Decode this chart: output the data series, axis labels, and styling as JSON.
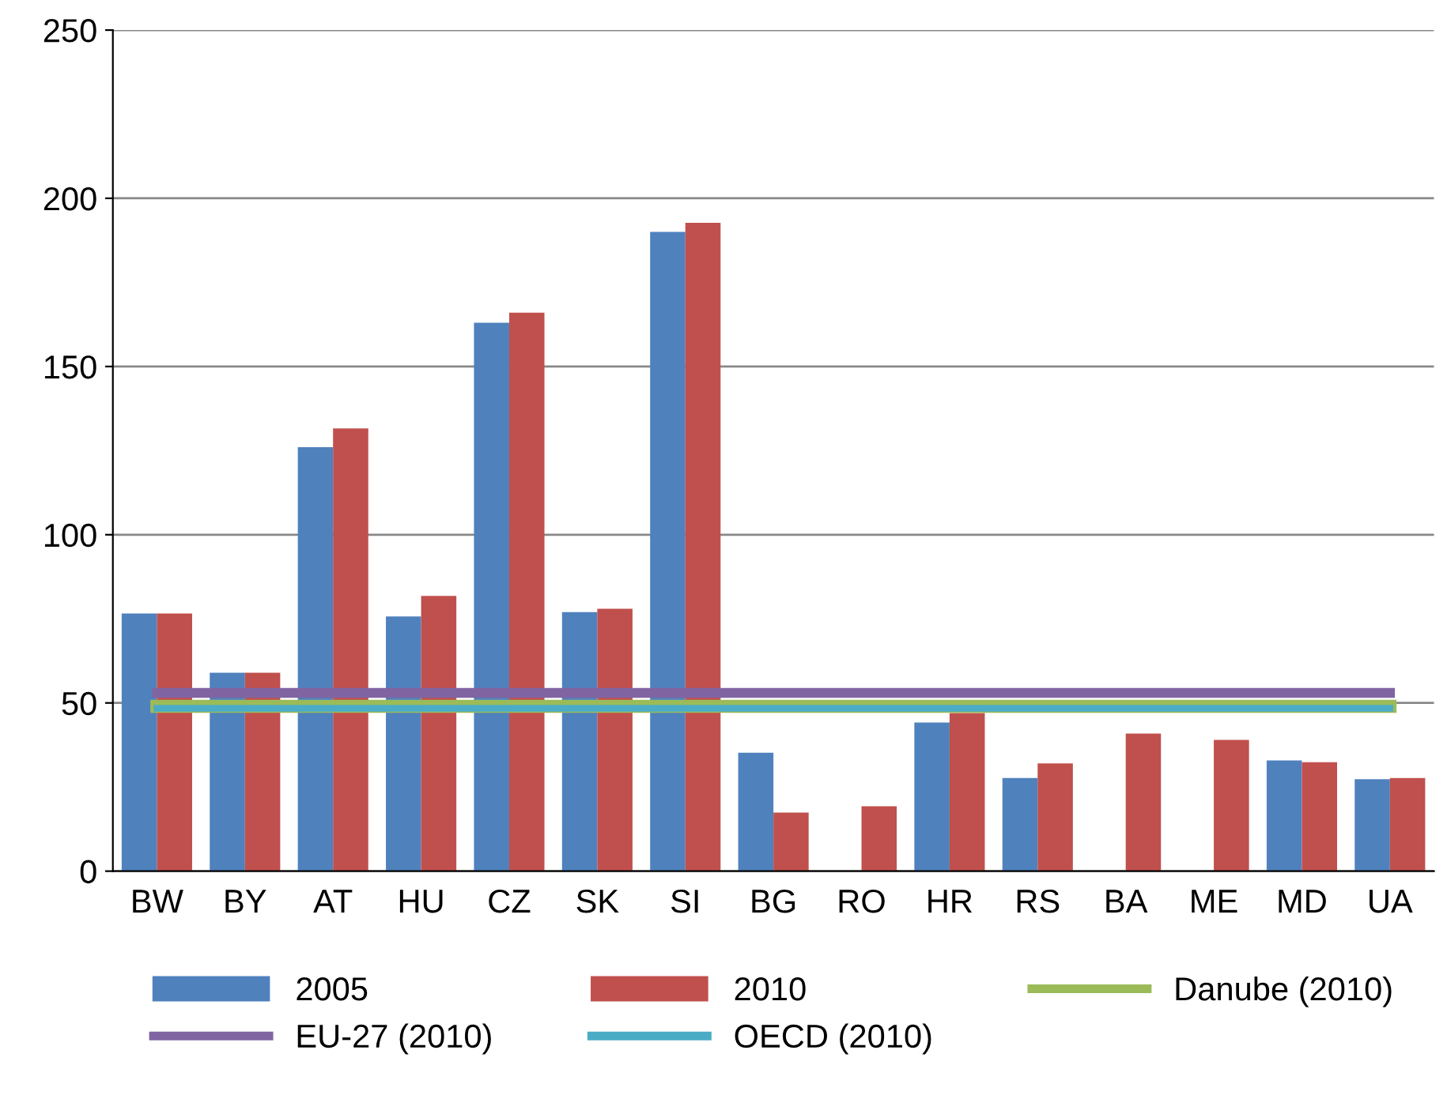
{
  "chart_data": {
    "type": "bar",
    "categories": [
      "BW",
      "BY",
      "AT",
      "HU",
      "CZ",
      "SK",
      "SI",
      "BG",
      "RO",
      "HR",
      "RS",
      "BA",
      "ME",
      "MD",
      "UA"
    ],
    "series": [
      {
        "name": "2005",
        "color": "#4f81bd",
        "values": [
          76.6,
          59,
          126,
          75.7,
          163,
          77,
          190,
          35.2,
          null,
          44.2,
          27.7,
          null,
          null,
          32.9,
          27.3
        ]
      },
      {
        "name": "2010",
        "color": "#c0504d",
        "values": [
          76.6,
          59,
          131.6,
          81.8,
          166,
          78,
          192.7,
          17.4,
          19.3,
          47,
          32,
          40.9,
          39,
          32.4,
          27.7
        ]
      },
      {
        "name": "Danube (2010)",
        "type": "line",
        "color": "#9bbb59",
        "values": [
          49,
          49,
          49,
          49,
          49,
          49,
          49,
          49,
          49,
          49,
          49,
          49,
          49,
          49,
          49
        ]
      },
      {
        "name": "EU-27 (2010)",
        "type": "line",
        "color": "#8064a2",
        "values": [
          53,
          53,
          53,
          53,
          53,
          53,
          53,
          53,
          53,
          53,
          53,
          53,
          53,
          53,
          53
        ]
      },
      {
        "name": "OECD (2010)",
        "type": "line",
        "color": "#4bacc6",
        "values": [
          48.4,
          48.4,
          48.4,
          48.4,
          48.4,
          48.4,
          48.4,
          48.4,
          48.4,
          48.4,
          48.4,
          48.4,
          48.4,
          48.4,
          48.4
        ]
      }
    ],
    "ylim": [
      0,
      250
    ],
    "yticks": [
      0,
      50,
      100,
      150,
      200,
      250
    ],
    "grid": "y",
    "legend": "bottom",
    "marker": "none",
    "line_style": "solid"
  }
}
